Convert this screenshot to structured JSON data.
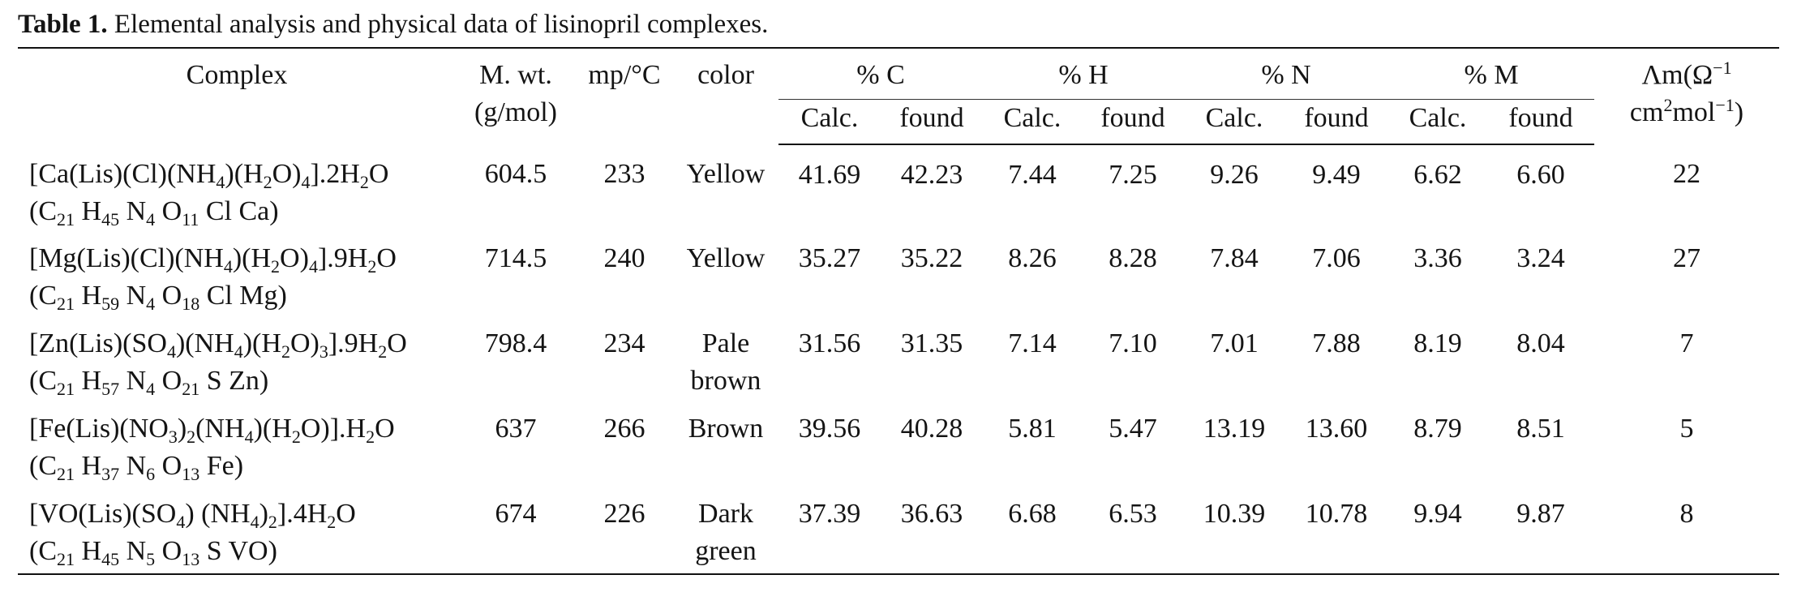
{
  "caption": {
    "label": "Table 1.",
    "text": " Elemental analysis and physical data of lisinopril complexes."
  },
  "headers": {
    "complex": "Complex",
    "mwt_line1": "M. wt.",
    "mwt_line2": "(g/mol)",
    "mp": "mp/°C",
    "color": "color",
    "pct_c": "% C",
    "pct_h": "% H",
    "pct_n": "% N",
    "pct_m": "% M",
    "calc": "Calc.",
    "found": "found",
    "lambda_html": "Λm(Ω<sup>−1</sup><br>cm<sup>2</sup>mol<sup>−1</sup>)"
  },
  "rows": [
    {
      "complex_html": "[Ca(Lis)(Cl)(NH<sub>4</sub>)(H<sub>2</sub>O)<sub>4</sub>].2H<sub>2</sub>O",
      "formula_html": "(C<sub>21</sub> H<sub>45</sub> N<sub>4</sub> O<sub>11</sub> Cl Ca)",
      "mwt": "604.5",
      "mp": "233",
      "color1": "Yellow",
      "color2": "",
      "c_calc": "41.69",
      "c_found": "42.23",
      "h_calc": "7.44",
      "h_found": "7.25",
      "n_calc": "9.26",
      "n_found": "9.49",
      "m_calc": "6.62",
      "m_found": "6.60",
      "lambda": "22"
    },
    {
      "complex_html": "[Mg(Lis)(Cl)(NH<sub>4</sub>)(H<sub>2</sub>O)<sub>4</sub>].9H<sub>2</sub>O",
      "formula_html": "(C<sub>21</sub> H<sub>59</sub> N<sub>4</sub> O<sub>18</sub> Cl Mg)",
      "mwt": "714.5",
      "mp": "240",
      "color1": "Yellow",
      "color2": "",
      "c_calc": "35.27",
      "c_found": "35.22",
      "h_calc": "8.26",
      "h_found": "8.28",
      "n_calc": "7.84",
      "n_found": "7.06",
      "m_calc": "3.36",
      "m_found": "3.24",
      "lambda": "27"
    },
    {
      "complex_html": "[Zn(Lis)(SO<sub>4</sub>)(NH<sub>4</sub>)(H<sub>2</sub>O)<sub>3</sub>].9H<sub>2</sub>O",
      "formula_html": "(C<sub>21</sub> H<sub>57</sub> N<sub>4</sub> O<sub>21</sub> S Zn)",
      "mwt": "798.4",
      "mp": "234",
      "color1": "Pale",
      "color2": "brown",
      "c_calc": "31.56",
      "c_found": "31.35",
      "h_calc": "7.14",
      "h_found": "7.10",
      "n_calc": "7.01",
      "n_found": "7.88",
      "m_calc": "8.19",
      "m_found": "8.04",
      "lambda": "7"
    },
    {
      "complex_html": "[Fe(Lis)(NO<sub>3</sub>)<sub>2</sub>(NH<sub>4</sub>)(H<sub>2</sub>O)].H<sub>2</sub>O",
      "formula_html": "(C<sub>21</sub> H<sub>37</sub> N<sub>6</sub> O<sub>13</sub> Fe)",
      "mwt": "637",
      "mp": "266",
      "color1": "Brown",
      "color2": "",
      "c_calc": "39.56",
      "c_found": "40.28",
      "h_calc": "5.81",
      "h_found": "5.47",
      "n_calc": "13.19",
      "n_found": "13.60",
      "m_calc": "8.79",
      "m_found": "8.51",
      "lambda": "5"
    },
    {
      "complex_html": "[VO(Lis)(SO<sub>4</sub>) (NH<sub>4</sub>)<sub>2</sub>].4H<sub>2</sub>O",
      "formula_html": "(C<sub>21</sub> H<sub>45</sub> N<sub>5</sub> O<sub>13</sub> S VO)",
      "mwt": "674",
      "mp": "226",
      "color1": "Dark",
      "color2": "green",
      "c_calc": "37.39",
      "c_found": "36.63",
      "h_calc": "6.68",
      "h_found": "6.53",
      "n_calc": "10.39",
      "n_found": "10.78",
      "m_calc": "9.94",
      "m_found": "9.87",
      "lambda": "8"
    }
  ]
}
